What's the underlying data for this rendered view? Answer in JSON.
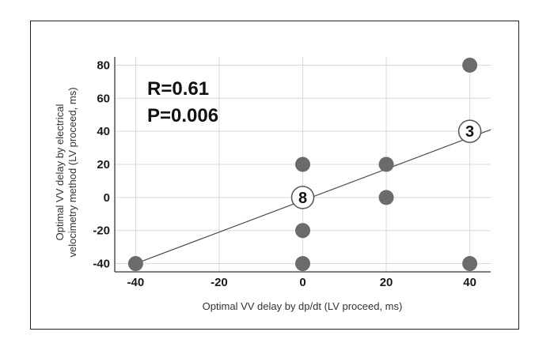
{
  "chart_data": {
    "type": "scatter",
    "xlabel": "Optimal VV delay by dp/dt (LV proceed, ms)",
    "ylabel_lines": [
      "Optimal VV delay by electrical",
      "velocimetry method  (LV proceed, ms)"
    ],
    "xlim": [
      -45,
      45
    ],
    "ylim": [
      -45,
      85
    ],
    "x_ticks": [
      -40,
      -20,
      0,
      20,
      40
    ],
    "y_ticks": [
      -40,
      -20,
      0,
      20,
      40,
      60,
      80
    ],
    "x_tick_labels": [
      "-40",
      "-20",
      "0",
      "20",
      "40"
    ],
    "y_tick_labels": [
      "-40",
      "-20",
      "0",
      "20",
      "40",
      "60",
      "80"
    ],
    "grid": true,
    "points": [
      {
        "x": -40,
        "y": -40
      },
      {
        "x": 0,
        "y": 20
      },
      {
        "x": 0,
        "y": -20
      },
      {
        "x": 0,
        "y": -40
      },
      {
        "x": 20,
        "y": 20
      },
      {
        "x": 20,
        "y": 0
      },
      {
        "x": 40,
        "y": 80
      },
      {
        "x": 40,
        "y": -40
      }
    ],
    "count_markers": [
      {
        "x": 0,
        "y": 0,
        "label": "8"
      },
      {
        "x": 40,
        "y": 40,
        "label": "3"
      }
    ],
    "regression_line": {
      "x": [
        -40,
        45
      ],
      "y": [
        -40,
        41
      ]
    },
    "annotations": {
      "r": "R=0.61",
      "p": "P=0.006"
    },
    "colors": {
      "point": "#6b6b6b",
      "line": "#4a4a4a",
      "grid": "#d9d9d9",
      "axis": "#555555"
    }
  }
}
